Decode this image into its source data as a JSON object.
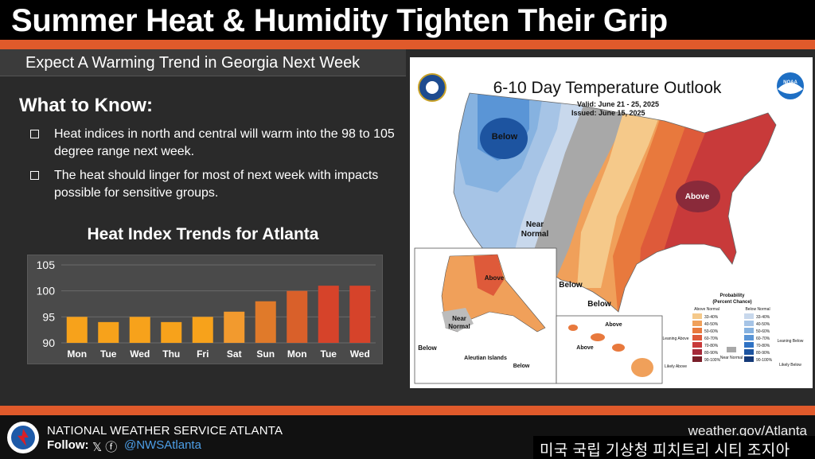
{
  "header": {
    "title": "Summer Heat & Humidity Tighten Their Grip",
    "subtitle": "Expect A Warming Trend in Georgia Next Week"
  },
  "what_to_know": {
    "heading": "What to Know:",
    "bullets": [
      "Heat indices in north and central will warm into the 98 to 105 degree range next week.",
      "The heat should linger for most of next week with impacts possible for sensitive groups."
    ]
  },
  "chart_data": {
    "type": "bar",
    "title": "Heat Index Trends for Atlanta",
    "categories": [
      "Mon",
      "Tue",
      "Wed",
      "Thu",
      "Fri",
      "Sat",
      "Sun",
      "Mon",
      "Tue",
      "Wed"
    ],
    "values": [
      95,
      94,
      95,
      94,
      95,
      96,
      98,
      100,
      101,
      101
    ],
    "ylim": [
      90,
      105
    ],
    "yticks": [
      90,
      95,
      100,
      105
    ],
    "grid": true,
    "colors": [
      "#f7a21b",
      "#f7a21b",
      "#f7a21b",
      "#f7a21b",
      "#f7a21b",
      "#f29a2e",
      "#e07a2a",
      "#d9602a",
      "#d6432a",
      "#d6432a"
    ]
  },
  "map": {
    "title": "6-10 Day Temperature Outlook",
    "valid": "Valid:  June 21 - 25, 2025",
    "issued": "Issued:  June 15, 2025",
    "labels": {
      "below_nw": "Below",
      "above_east": "Above",
      "near_normal": "Near\nNormal",
      "below_tx1": "Below",
      "below_tx2": "Below",
      "alaska_above": "Above",
      "alaska_near": "Near\nNormal",
      "alaska_below": "Below",
      "aleutian": "Aleutian Islands",
      "aleutian_below": "Below",
      "hawaii_above1": "Above",
      "hawaii_above2": "Above"
    },
    "legend": {
      "title": "Probability",
      "subtitle": "(Percent Chance)",
      "above_header": "Above Normal",
      "below_header": "Below Normal",
      "near_label": "Near\nNormal",
      "leaning_above": "Leaning\nAbove",
      "likely_above": "Likely\nAbove",
      "leaning_below": "Leaning\nBelow",
      "likely_below": "Likely\nBelow",
      "above_ranges": [
        "33-40%",
        "40-50%",
        "50-60%",
        "60-70%",
        "70-80%",
        "80-90%",
        "90-100%"
      ],
      "below_ranges": [
        "33-40%",
        "40-50%",
        "50-60%",
        "60-70%",
        "70-80%",
        "80-90%",
        "90-100%"
      ],
      "above_colors": [
        "#f5c98a",
        "#f0a05a",
        "#e8793d",
        "#de5a3a",
        "#c83a3a",
        "#a52a3a",
        "#7a1f2a"
      ],
      "below_colors": [
        "#c8d8ec",
        "#a6c4e6",
        "#86b2e0",
        "#5a95d6",
        "#2f72c4",
        "#1d54a0",
        "#153a78"
      ]
    },
    "noaa_logo": "NOAA"
  },
  "footer": {
    "office": "NATIONAL WEATHER SERVICE ATLANTA",
    "follow": "Follow:",
    "social_icons": "𝕏 ⓕ",
    "handle": "@NWSAtlanta",
    "website": "weather.gov/Atlanta",
    "caption": "미국 국립 기상청 피치트리 시티 조지아"
  }
}
